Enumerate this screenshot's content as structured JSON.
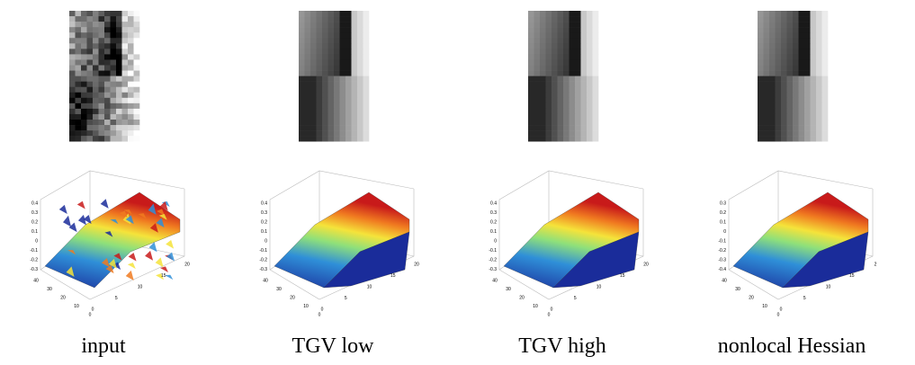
{
  "panels": [
    {
      "caption": "input",
      "plot": {
        "z_ticks": [
          "0.4",
          "0.3",
          "0.2",
          "0.1",
          "0",
          "-0.1",
          "-0.2",
          "-0.3"
        ],
        "y_ticks": [
          "40",
          "30",
          "20",
          "10",
          "0"
        ],
        "x_ticks": [
          "0",
          "5",
          "10",
          "15",
          "20"
        ]
      }
    },
    {
      "caption": "TGV low",
      "plot": {
        "z_ticks": [
          "0.4",
          "0.3",
          "0.2",
          "0.1",
          "0",
          "-0.1",
          "-0.2",
          "-0.3"
        ],
        "y_ticks": [
          "40",
          "30",
          "20",
          "10",
          "0"
        ],
        "x_ticks": [
          "0",
          "5",
          "10",
          "15",
          "20"
        ]
      }
    },
    {
      "caption": "TGV high",
      "plot": {
        "z_ticks": [
          "0.4",
          "0.3",
          "0.2",
          "0.1",
          "0",
          "-0.1",
          "-0.2",
          "-0.3"
        ],
        "y_ticks": [
          "40",
          "30",
          "20",
          "10",
          "0"
        ],
        "x_ticks": [
          "0",
          "5",
          "10",
          "15",
          "20"
        ]
      }
    },
    {
      "caption": "nonlocal Hessian",
      "plot": {
        "z_ticks": [
          "0.3",
          "0.2",
          "0.1",
          "0",
          "-0.1",
          "-0.2",
          "-0.3",
          "-0.4"
        ],
        "y_ticks": [
          "40",
          "30",
          "20",
          "10",
          "0"
        ],
        "x_ticks": [
          "0",
          "5",
          "10",
          "15",
          "2"
        ]
      }
    }
  ]
}
